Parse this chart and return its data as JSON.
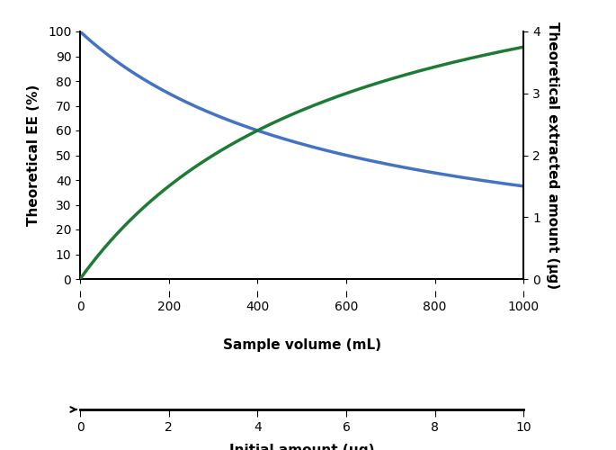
{
  "xlabel_bottom_main": "Sample volume (mL)",
  "xlabel_bottom_secondary": "Initial amount (μg)",
  "ylabel_left": "Theoretical EE (%)",
  "ylabel_right": "Theoretical extracted amount (μg)",
  "x_volume_min": 0,
  "x_volume_max": 1000,
  "x_volume_ticks": [
    0,
    200,
    400,
    600,
    800,
    1000
  ],
  "y_left_min": 0,
  "y_left_max": 100,
  "y_left_ticks": [
    0,
    10,
    20,
    30,
    40,
    50,
    60,
    70,
    80,
    90,
    100
  ],
  "y_right_min": 0,
  "y_right_max": 4,
  "y_right_ticks": [
    0,
    1,
    2,
    3,
    4
  ],
  "x_initial_min": 0,
  "x_initial_max": 10,
  "x_initial_ticks": [
    0,
    2,
    4,
    6,
    8,
    10
  ],
  "blue_color": "#4472C4",
  "green_color": "#1E7B34",
  "line_width": 2.5,
  "background_color": "#FFFFFF",
  "K": 600.0
}
